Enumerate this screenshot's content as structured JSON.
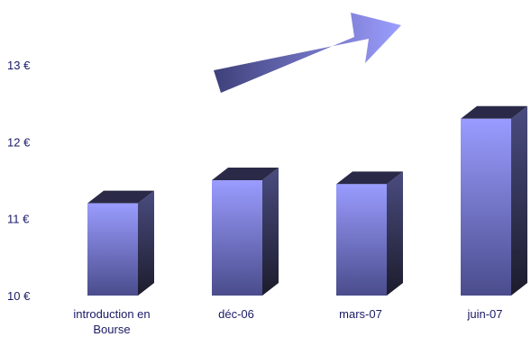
{
  "chart_data": {
    "type": "bar",
    "style": "3d-columns",
    "categories": [
      "introduction en Bourse",
      "déc-06",
      "mars-07",
      "juin-07"
    ],
    "category_lines": [
      [
        "introduction en",
        "Bourse"
      ],
      [
        "déc-06"
      ],
      [
        "mars-07"
      ],
      [
        "juin-07"
      ]
    ],
    "values": [
      11.2,
      11.5,
      11.45,
      12.3
    ],
    "ylim": [
      10,
      13.5
    ],
    "yticks": [
      10,
      11,
      12,
      13
    ],
    "ytick_labels": [
      "10 €",
      "11 €",
      "12 €",
      "13 €"
    ],
    "grid": false,
    "legend": "none",
    "annotation": "upward-trend-arrow",
    "colors": {
      "front_top": "#9a9cff",
      "front_bottom": "#4a4c8c",
      "side_top": "#4a4c80",
      "side_bottom": "#1c1c2c",
      "top_face": "#2a2a48",
      "arrow_start": "#3e407a",
      "arrow_end": "#9c9eff",
      "label_text": "#1a1a66"
    }
  }
}
